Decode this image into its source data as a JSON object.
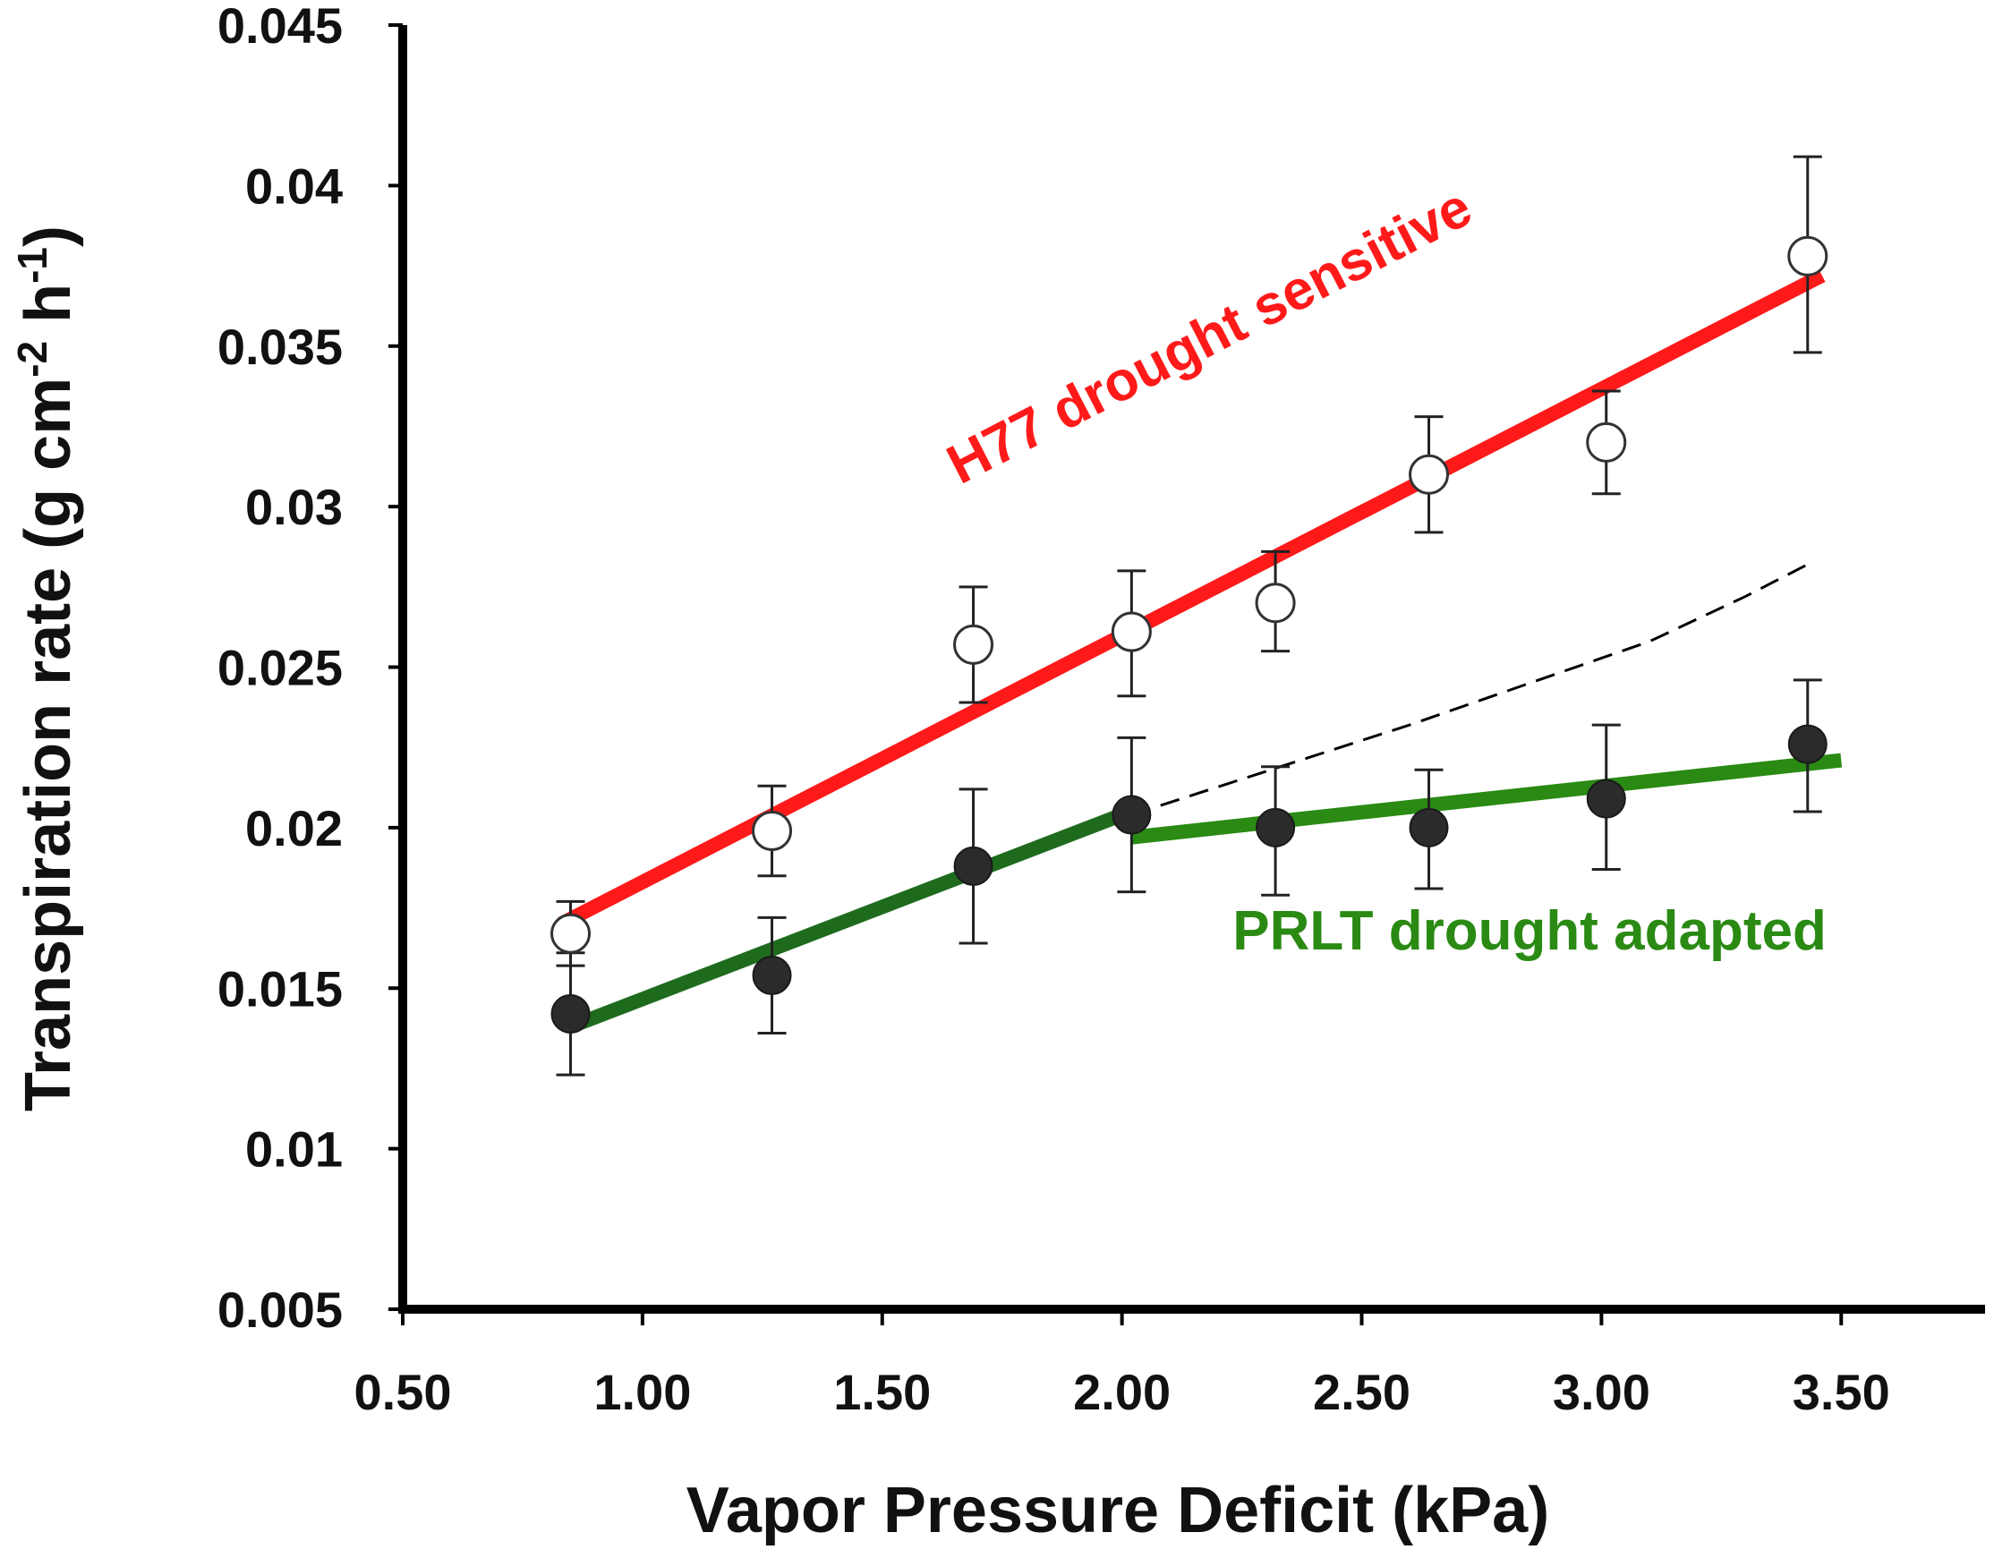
{
  "chart_data": {
    "type": "scatter",
    "title": "",
    "xlabel": "Vapor Pressure Deficit (kPa)",
    "ylabel_main": "Transpiration rate (g cm",
    "ylabel_sup1": "-2",
    "ylabel_mid": " h",
    "ylabel_sup2": "-1",
    "ylabel_end": ")",
    "xlim": [
      0.5,
      3.8
    ],
    "ylim": [
      0.005,
      0.045
    ],
    "x_ticks": [
      0.5,
      1.0,
      1.5,
      2.0,
      2.5,
      3.0,
      3.5
    ],
    "x_tick_labels": [
      "0.50",
      "1.00",
      "1.50",
      "2.00",
      "2.50",
      "3.00",
      "3.50"
    ],
    "y_ticks": [
      0.005,
      0.01,
      0.015,
      0.02,
      0.025,
      0.03,
      0.035,
      0.04,
      0.045
    ],
    "y_tick_labels": [
      "0.005",
      "0.01",
      "0.015",
      "0.02",
      "0.025",
      "0.03",
      "0.035",
      "0.04",
      "0.045"
    ],
    "grid": false,
    "series": [
      {
        "name": "H77 drought sensitive",
        "marker": "open-circle",
        "x": [
          0.85,
          1.27,
          1.69,
          2.02,
          2.32,
          2.64,
          3.01,
          3.43
        ],
        "y": [
          0.0167,
          0.0199,
          0.0257,
          0.0261,
          0.027,
          0.031,
          0.032,
          0.0378
        ],
        "err_low": [
          0.001,
          0.0014,
          0.0018,
          0.002,
          0.0015,
          0.0018,
          0.0016,
          0.003
        ],
        "err_high": [
          0.001,
          0.0014,
          0.0018,
          0.0019,
          0.0016,
          0.0018,
          0.0016,
          0.0031
        ]
      },
      {
        "name": "PRLT drought adapted",
        "marker": "filled-circle",
        "x": [
          0.85,
          1.27,
          1.69,
          2.02,
          2.32,
          2.64,
          3.01,
          3.43
        ],
        "y": [
          0.0142,
          0.0154,
          0.0188,
          0.0204,
          0.02,
          0.02,
          0.0209,
          0.0226
        ],
        "err_low": [
          0.0019,
          0.0018,
          0.0024,
          0.0024,
          0.0021,
          0.0019,
          0.0022,
          0.0021
        ],
        "err_high": [
          0.0019,
          0.0018,
          0.0024,
          0.0024,
          0.0019,
          0.0018,
          0.0023,
          0.002
        ]
      }
    ],
    "fit_lines": [
      {
        "name": "H77 fit",
        "color": "#ff1a1a",
        "points": [
          [
            0.83,
            0.017
          ],
          [
            3.46,
            0.0372
          ]
        ]
      },
      {
        "name": "PRLT fit segment 1",
        "color": "#1e6b1e",
        "points": [
          [
            0.85,
            0.0138
          ],
          [
            2.0,
            0.0204
          ]
        ]
      },
      {
        "name": "PRLT fit segment 2",
        "color": "#2a8a14",
        "points": [
          [
            2.02,
            0.0197
          ],
          [
            3.5,
            0.0221
          ]
        ]
      },
      {
        "name": "PRLT extrapolation",
        "color": "#000000",
        "dashed": true,
        "points": [
          [
            2.02,
            0.0204
          ],
          [
            2.6,
            0.0232
          ],
          [
            3.1,
            0.0258
          ],
          [
            3.3,
            0.0272
          ],
          [
            3.43,
            0.0282
          ]
        ]
      }
    ],
    "annotations": [
      {
        "text": "H77 drought sensitive",
        "color": "#ff1a1a",
        "x": 2.2,
        "y": 0.0348,
        "rotate_along": "H77 fit"
      },
      {
        "text": "PRLT drought adapted",
        "color": "#2a8a14",
        "x": 2.85,
        "y": 0.0162
      }
    ],
    "colors": {
      "axis": "#000000",
      "marker_fill_dark": "#2b2b2b",
      "marker_open_fill": "#ffffff"
    }
  }
}
